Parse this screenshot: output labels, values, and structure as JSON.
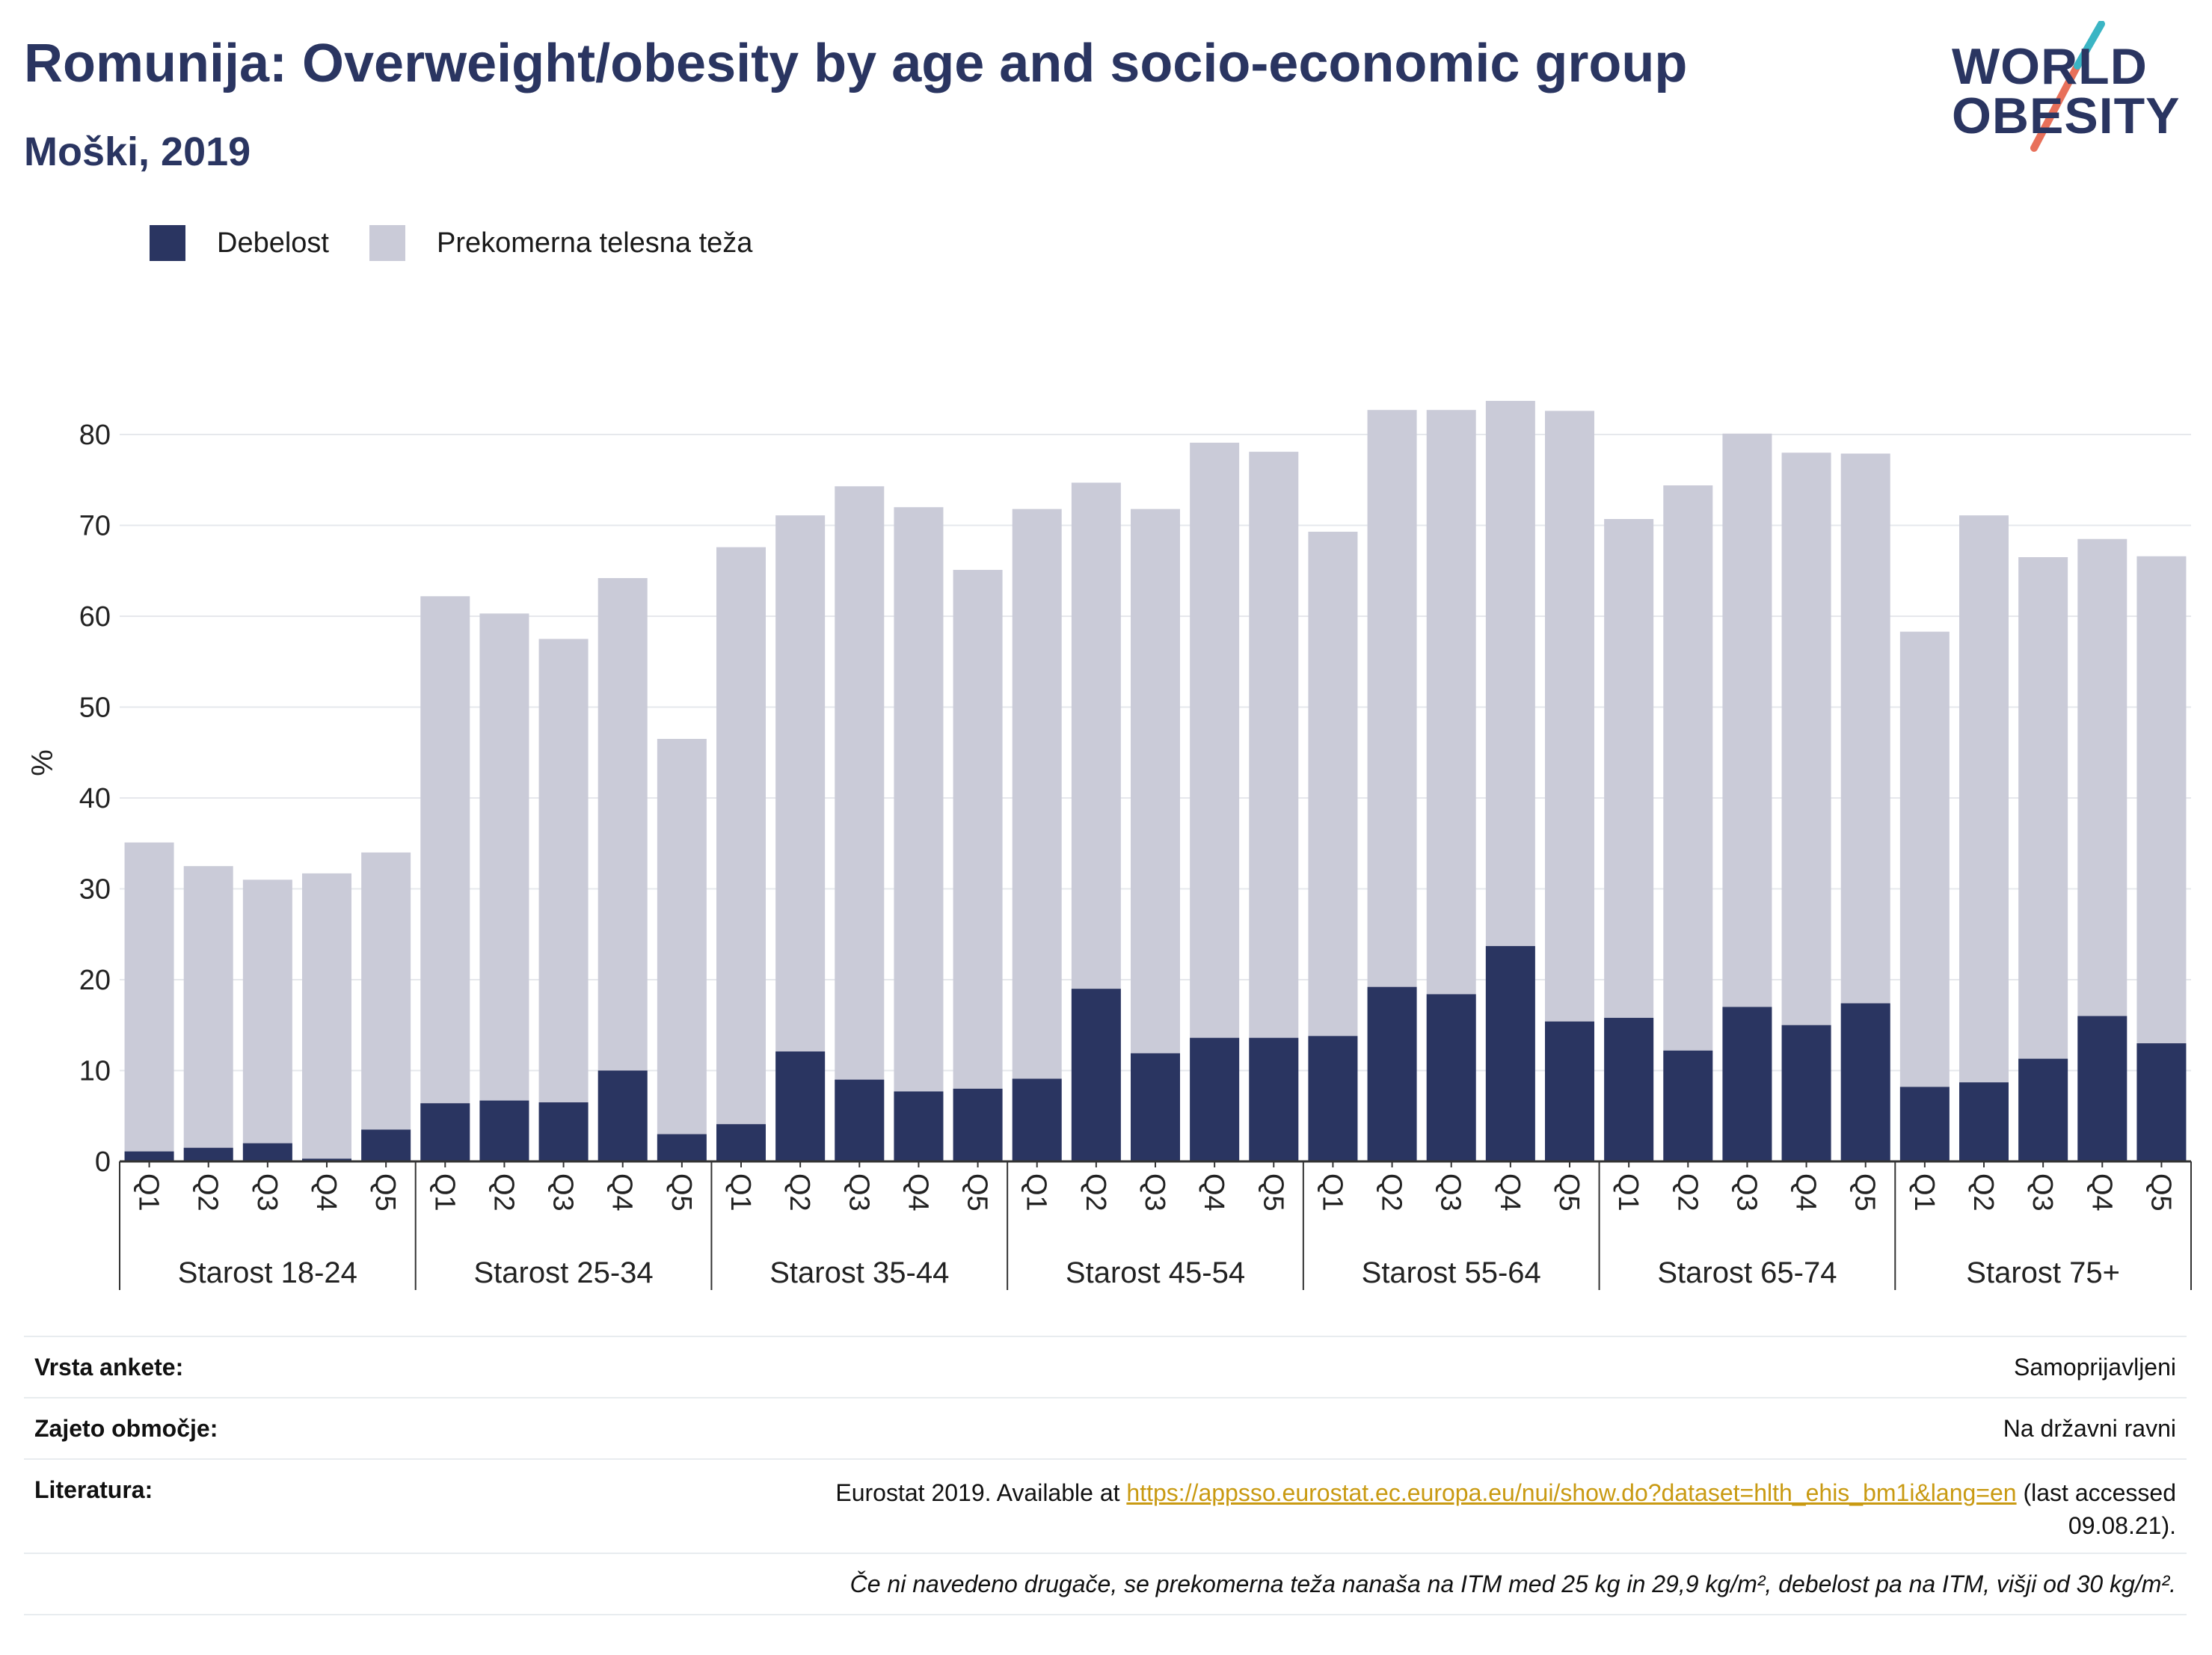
{
  "header": {
    "title": "Romunija: Overweight/obesity by age and socio-economic group",
    "subtitle": "Moški, 2019"
  },
  "logo": {
    "line1": "WORLD",
    "line2": "OBESITY",
    "colors": {
      "text": "#2a3561",
      "teal": "#3bb5c4",
      "coral": "#e8705a"
    }
  },
  "legend": [
    {
      "label": "Debelost",
      "color": "#2a3561"
    },
    {
      "label": "Prekomerna telesna teža",
      "color": "#cacbd8"
    }
  ],
  "chart_data": {
    "type": "bar",
    "stacked": false,
    "ylabel": "%",
    "ylim": [
      0,
      90
    ],
    "yticks": [
      0,
      10,
      20,
      30,
      40,
      50,
      60,
      70,
      80
    ],
    "grid": true,
    "legend_placement": "top-left",
    "groups": [
      "Starost 18-24",
      "Starost 25-34",
      "Starost 35-44",
      "Starost 45-54",
      "Starost 55-64",
      "Starost 65-74",
      "Starost 75+"
    ],
    "subcategories": [
      "Q1",
      "Q2",
      "Q3",
      "Q4",
      "Q5"
    ],
    "series": [
      {
        "name": "Prekomerna telesna teža",
        "color": "#cacbd8",
        "values": [
          35.1,
          32.5,
          31.0,
          31.7,
          34.0,
          62.2,
          60.3,
          57.5,
          64.2,
          46.5,
          67.6,
          71.1,
          74.3,
          72.0,
          65.1,
          71.8,
          74.7,
          71.8,
          79.1,
          78.1,
          69.3,
          82.7,
          82.7,
          83.7,
          82.6,
          70.7,
          74.4,
          80.1,
          78.0,
          77.9,
          58.3,
          71.1,
          66.5,
          68.5,
          66.6
        ]
      },
      {
        "name": "Debelost",
        "color": "#2a3561",
        "values": [
          1.1,
          1.5,
          2.0,
          0.3,
          3.5,
          6.4,
          6.7,
          6.5,
          10.0,
          3.0,
          4.1,
          12.1,
          9.0,
          7.7,
          8.0,
          9.1,
          19.0,
          11.9,
          13.6,
          13.6,
          13.8,
          19.2,
          18.4,
          23.7,
          15.4,
          15.8,
          12.2,
          17.0,
          15.0,
          17.4,
          8.2,
          8.7,
          11.3,
          16.0,
          13.0
        ]
      }
    ]
  },
  "footer": {
    "rows": [
      {
        "label": "Vrsta ankete:",
        "value": "Samoprijavljeni"
      },
      {
        "label": "Zajeto območje:",
        "value": "Na državni ravni"
      }
    ],
    "literature": {
      "label": "Literatura:",
      "prefix": "Eurostat 2019. Available at ",
      "link": "https://appsso.eurostat.ec.europa.eu/nui/show.do?dataset=hlth_ehis_bm1i&lang=en",
      "suffix_line1": " (last accessed",
      "suffix_line2": "09.08.21)."
    },
    "note": "Če ni navedeno drugače, se prekomerna teža nanaša na ITM med 25 kg in 29,9 kg/m², debelost pa na ITM, višji od 30 kg/m²."
  }
}
